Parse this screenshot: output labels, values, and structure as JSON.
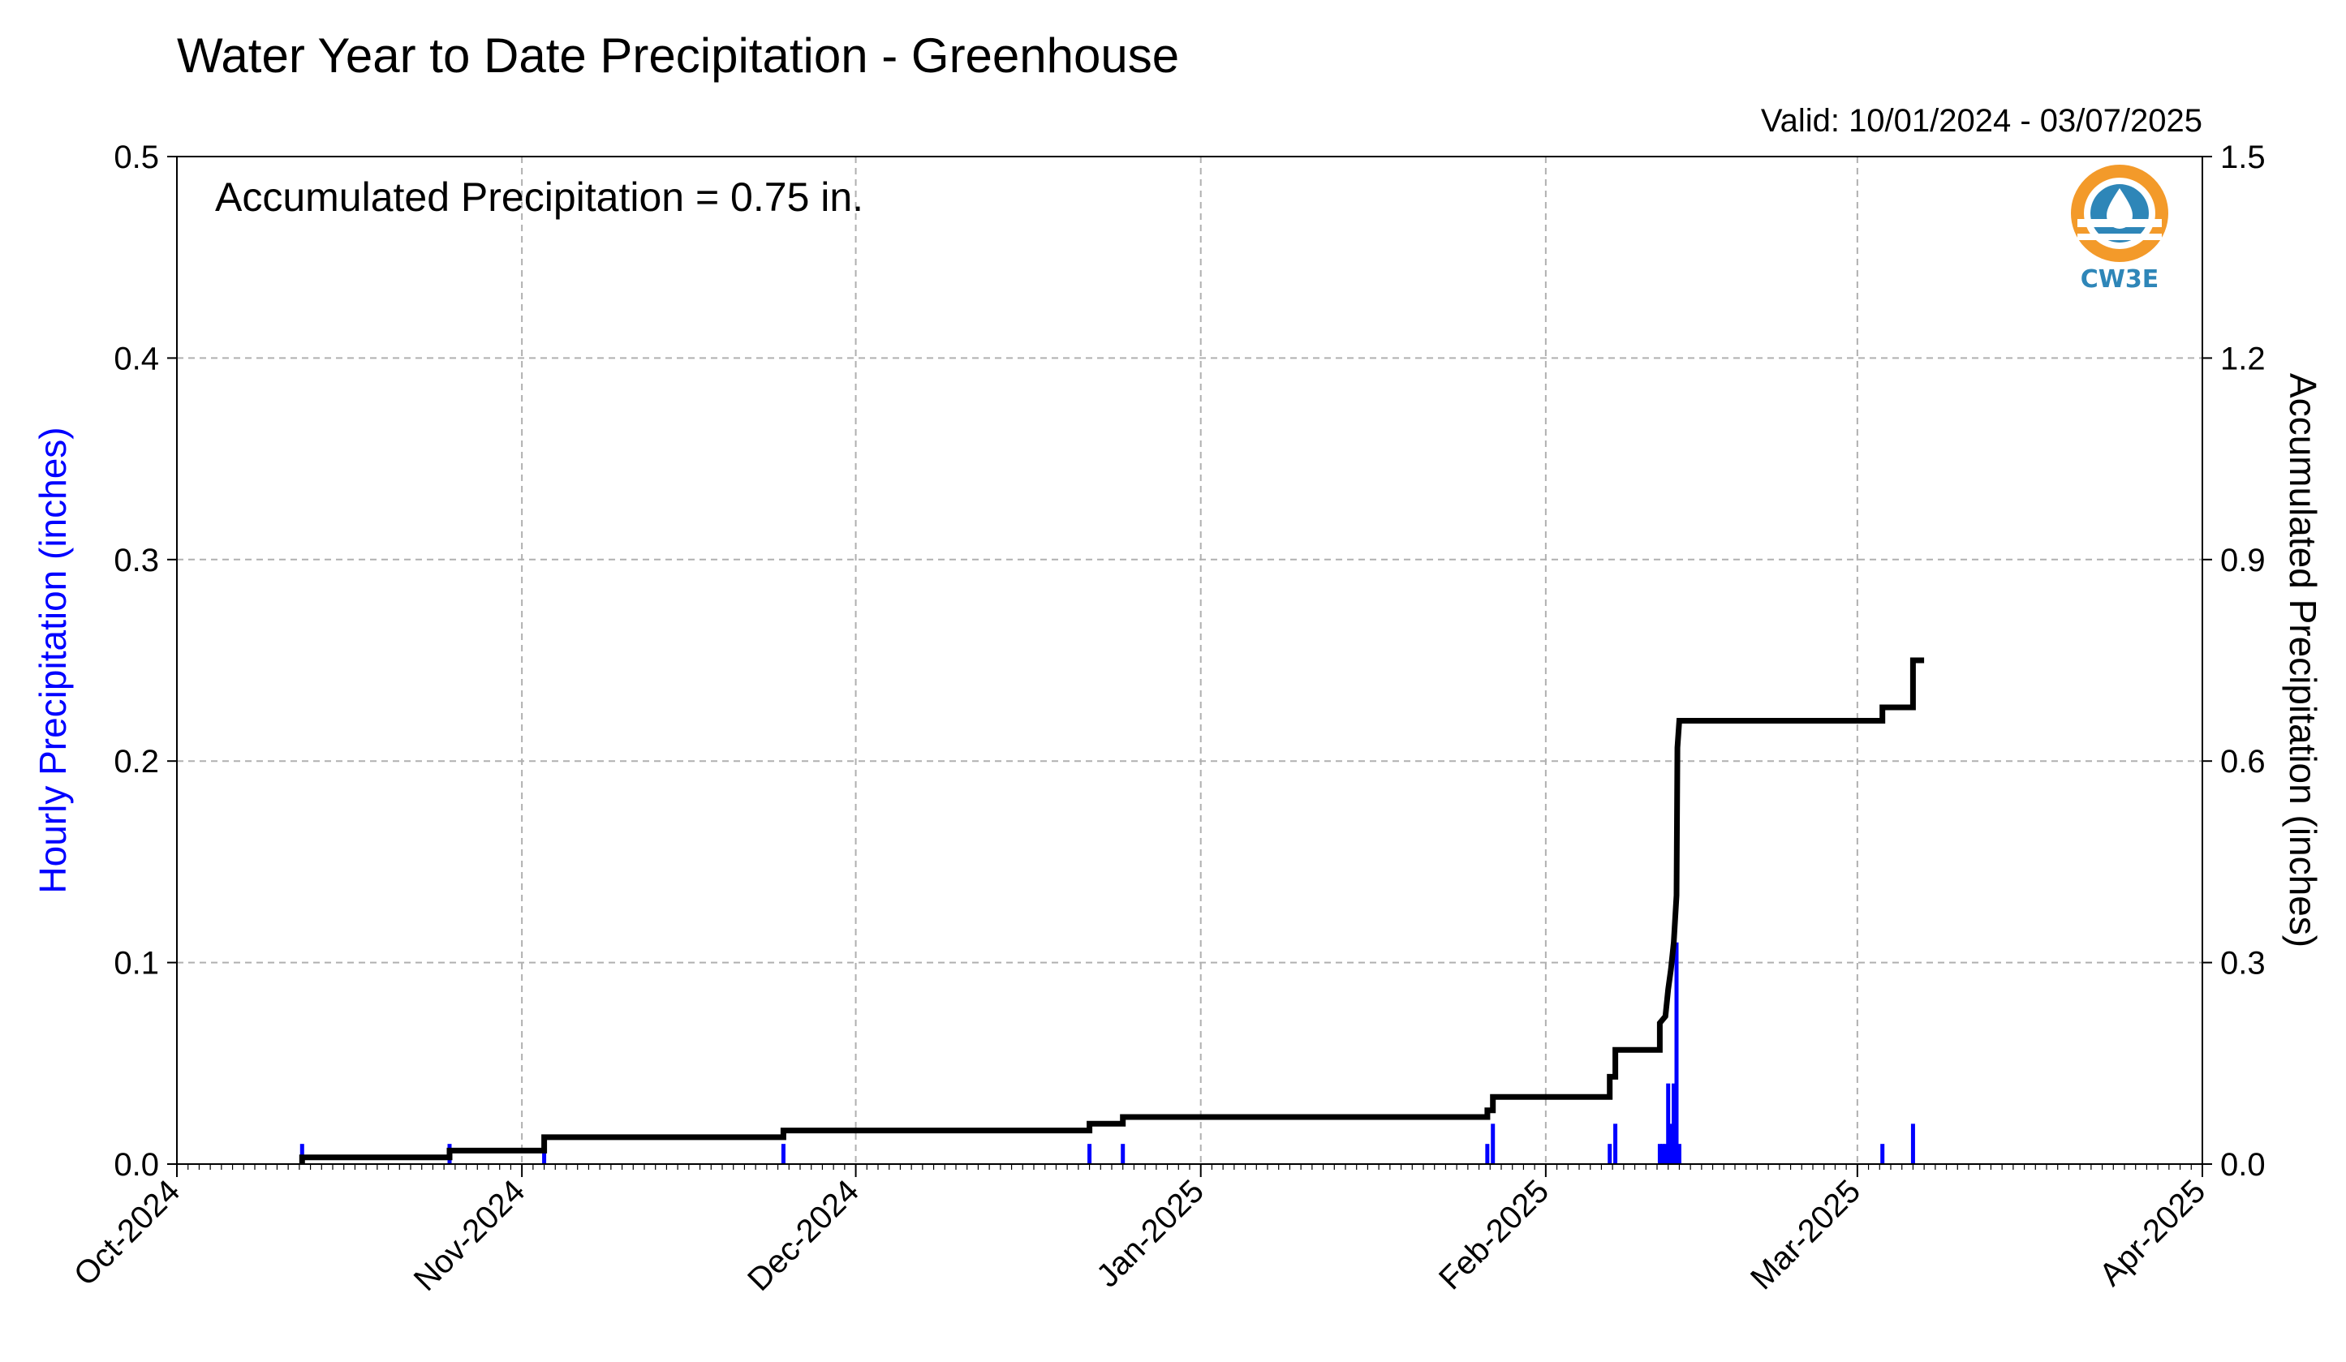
{
  "colors": {
    "hourly_bars": "#0000ff",
    "accumulated_line": "#000000",
    "left_axis_label": "#0000ff",
    "grid": "#b0b0b0",
    "logo_orange": "#f39a2a",
    "logo_blue": "#2e86b8"
  },
  "logo": {
    "text": "CW3E",
    "icon": "water-drop-logo-icon"
  },
  "chart_data": {
    "type": "bar+line",
    "title": "Water Year to Date Precipitation - Greenhouse",
    "valid_text": "Valid: 10/01/2024 - 03/07/2025",
    "annotation": "Accumulated Precipitation = 0.75 in.",
    "ylabel_left": "Hourly Precipitation (inches)",
    "ylabel_right": "Accumulated Precipitation (inches)",
    "x_start": "2024-10-01",
    "x_end": "2025-04-01",
    "ylim_left": [
      0,
      0.5
    ],
    "ylim_right": [
      0,
      1.5
    ],
    "grid": true,
    "yticks_left": [
      "0.0",
      "0.1",
      "0.2",
      "0.3",
      "0.4",
      "0.5"
    ],
    "yticks_left_values": [
      0,
      0.1,
      0.2,
      0.3,
      0.4,
      0.5
    ],
    "yticks_right": [
      "0.0",
      "0.3",
      "0.6",
      "0.9",
      "1.2",
      "1.5"
    ],
    "yticks_right_values": [
      0,
      0.3,
      0.6,
      0.9,
      1.2,
      1.5
    ],
    "xticks": [
      {
        "date": "2024-10-01",
        "label": "Oct-2024"
      },
      {
        "date": "2024-11-01",
        "label": "Nov-2024"
      },
      {
        "date": "2024-12-01",
        "label": "Dec-2024"
      },
      {
        "date": "2025-01-01",
        "label": "Jan-2025"
      },
      {
        "date": "2025-02-01",
        "label": "Feb-2025"
      },
      {
        "date": "2025-03-01",
        "label": "Mar-2025"
      },
      {
        "date": "2025-04-01",
        "label": "Apr-2025"
      }
    ],
    "hourly_series": {
      "name": "Hourly Precipitation",
      "points": [
        {
          "x": "2024-10-12 06:00",
          "y": 0.01
        },
        {
          "x": "2024-10-25 12:00",
          "y": 0.01
        },
        {
          "x": "2024-11-03 00:00",
          "y": 0.01
        },
        {
          "x": "2024-11-24 12:00",
          "y": 0.01
        },
        {
          "x": "2024-12-22 00:00",
          "y": 0.01
        },
        {
          "x": "2024-12-25 00:00",
          "y": 0.01
        },
        {
          "x": "2025-01-26 18:00",
          "y": 0.01
        },
        {
          "x": "2025-01-27 06:00",
          "y": 0.02
        },
        {
          "x": "2025-02-06 18:00",
          "y": 0.01
        },
        {
          "x": "2025-02-07 06:00",
          "y": 0.02
        },
        {
          "x": "2025-02-11 06:00",
          "y": 0.01
        },
        {
          "x": "2025-02-11 12:00",
          "y": 0.01
        },
        {
          "x": "2025-02-11 18:00",
          "y": 0.01
        },
        {
          "x": "2025-02-12 00:00",
          "y": 0.04
        },
        {
          "x": "2025-02-12 06:00",
          "y": 0.02
        },
        {
          "x": "2025-02-12 12:00",
          "y": 0.04
        },
        {
          "x": "2025-02-12 18:00",
          "y": 0.11
        },
        {
          "x": "2025-02-13 00:00",
          "y": 0.01
        },
        {
          "x": "2025-03-03 06:00",
          "y": 0.01
        },
        {
          "x": "2025-03-06 00:00",
          "y": 0.02
        }
      ]
    },
    "accumulated_series": {
      "name": "Accumulated Precipitation",
      "points": [
        {
          "x": "2024-10-12 06:00",
          "y": 0.0
        },
        {
          "x": "2024-10-12 06:00",
          "y": 0.01
        },
        {
          "x": "2024-10-25 12:00",
          "y": 0.01
        },
        {
          "x": "2024-10-25 12:00",
          "y": 0.02
        },
        {
          "x": "2024-11-03 00:00",
          "y": 0.02
        },
        {
          "x": "2024-11-03 00:00",
          "y": 0.04
        },
        {
          "x": "2024-11-24 12:00",
          "y": 0.04
        },
        {
          "x": "2024-11-24 12:00",
          "y": 0.05
        },
        {
          "x": "2024-12-22 00:00",
          "y": 0.05
        },
        {
          "x": "2024-12-22 00:00",
          "y": 0.06
        },
        {
          "x": "2024-12-25 00:00",
          "y": 0.06
        },
        {
          "x": "2024-12-25 00:00",
          "y": 0.07
        },
        {
          "x": "2025-01-26 18:00",
          "y": 0.07
        },
        {
          "x": "2025-01-26 18:00",
          "y": 0.08
        },
        {
          "x": "2025-01-27 06:00",
          "y": 0.08
        },
        {
          "x": "2025-01-27 06:00",
          "y": 0.1
        },
        {
          "x": "2025-02-06 18:00",
          "y": 0.1
        },
        {
          "x": "2025-02-06 18:00",
          "y": 0.13
        },
        {
          "x": "2025-02-07 06:00",
          "y": 0.13
        },
        {
          "x": "2025-02-07 06:00",
          "y": 0.17
        },
        {
          "x": "2025-02-11 06:00",
          "y": 0.17
        },
        {
          "x": "2025-02-11 06:00",
          "y": 0.21
        },
        {
          "x": "2025-02-11 18:00",
          "y": 0.22
        },
        {
          "x": "2025-02-12 00:00",
          "y": 0.26
        },
        {
          "x": "2025-02-12 06:00",
          "y": 0.29
        },
        {
          "x": "2025-02-12 12:00",
          "y": 0.33
        },
        {
          "x": "2025-02-12 18:00",
          "y": 0.4
        },
        {
          "x": "2025-02-12 20:00",
          "y": 0.62
        },
        {
          "x": "2025-02-13 00:00",
          "y": 0.66
        },
        {
          "x": "2025-03-03 06:00",
          "y": 0.66
        },
        {
          "x": "2025-03-03 06:00",
          "y": 0.68
        },
        {
          "x": "2025-03-06 00:00",
          "y": 0.68
        },
        {
          "x": "2025-03-06 00:00",
          "y": 0.75
        },
        {
          "x": "2025-03-07 00:00",
          "y": 0.75
        }
      ]
    }
  }
}
